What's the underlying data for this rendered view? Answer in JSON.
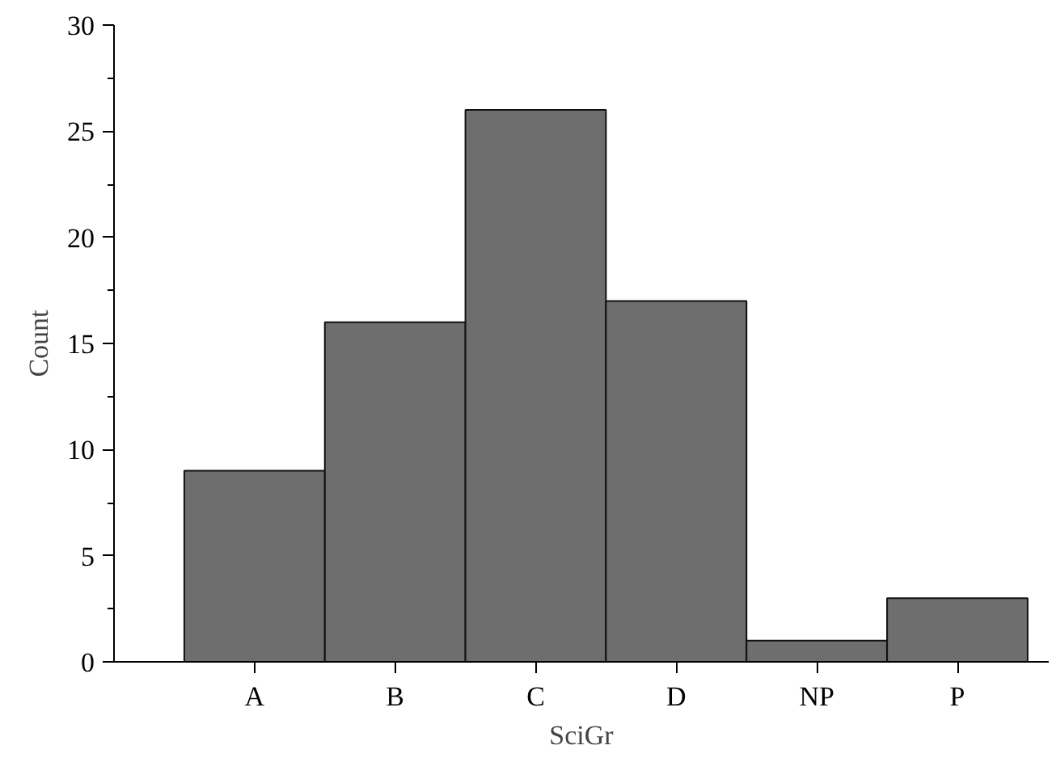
{
  "chart_data": {
    "type": "bar",
    "xlabel": "SciGr",
    "ylabel": "Count",
    "categories": [
      "A",
      "B",
      "C",
      "D",
      "NP",
      "P"
    ],
    "values": [
      9,
      16,
      26,
      17,
      1,
      3
    ],
    "color": "#6e6e6e",
    "ylim": [
      0,
      30
    ],
    "yticks": [
      0,
      5,
      10,
      15,
      20,
      25,
      30
    ],
    "grid": false
  }
}
